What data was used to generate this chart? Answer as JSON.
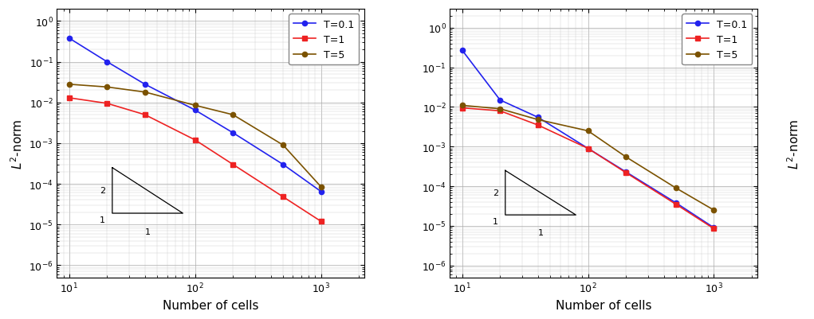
{
  "x_vals": [
    10,
    20,
    40,
    100,
    200,
    500,
    1000
  ],
  "left": {
    "T01_y": [
      0.38,
      0.1,
      0.028,
      0.0065,
      0.0018,
      0.0003,
      6.5e-05
    ],
    "T1_y": [
      0.013,
      0.0095,
      0.005,
      0.0012,
      0.0003,
      4.8e-05,
      1.2e-05
    ],
    "T5_y": [
      0.028,
      0.024,
      0.018,
      0.0085,
      0.005,
      0.0009,
      8.5e-05
    ],
    "ylim": [
      5e-07,
      2.0
    ],
    "yticks": [
      1e-06,
      0.0001,
      0.01
    ],
    "ylabel": "$L^2$-norm"
  },
  "right": {
    "T01_y": [
      0.27,
      0.015,
      0.0055,
      0.0009,
      0.00023,
      3.8e-05,
      9e-06
    ],
    "T1_y": [
      0.0095,
      0.008,
      0.0035,
      0.0009,
      0.00022,
      3.5e-05,
      8.5e-06
    ],
    "T5_y": [
      0.011,
      0.009,
      0.0048,
      0.0025,
      0.00055,
      9e-05,
      2.5e-05
    ],
    "ylim": [
      5e-07,
      3.0
    ],
    "yticks": [
      1e-06,
      0.0001,
      0.01,
      1.0
    ],
    "ylabel": "$L^2$-norm"
  },
  "color_T01": "#2222EE",
  "color_T1": "#EE2222",
  "color_T5": "#7B5200",
  "xlabel": "Number of cells",
  "legend_labels": [
    "T=0.1",
    "T=1",
    "T=5"
  ]
}
